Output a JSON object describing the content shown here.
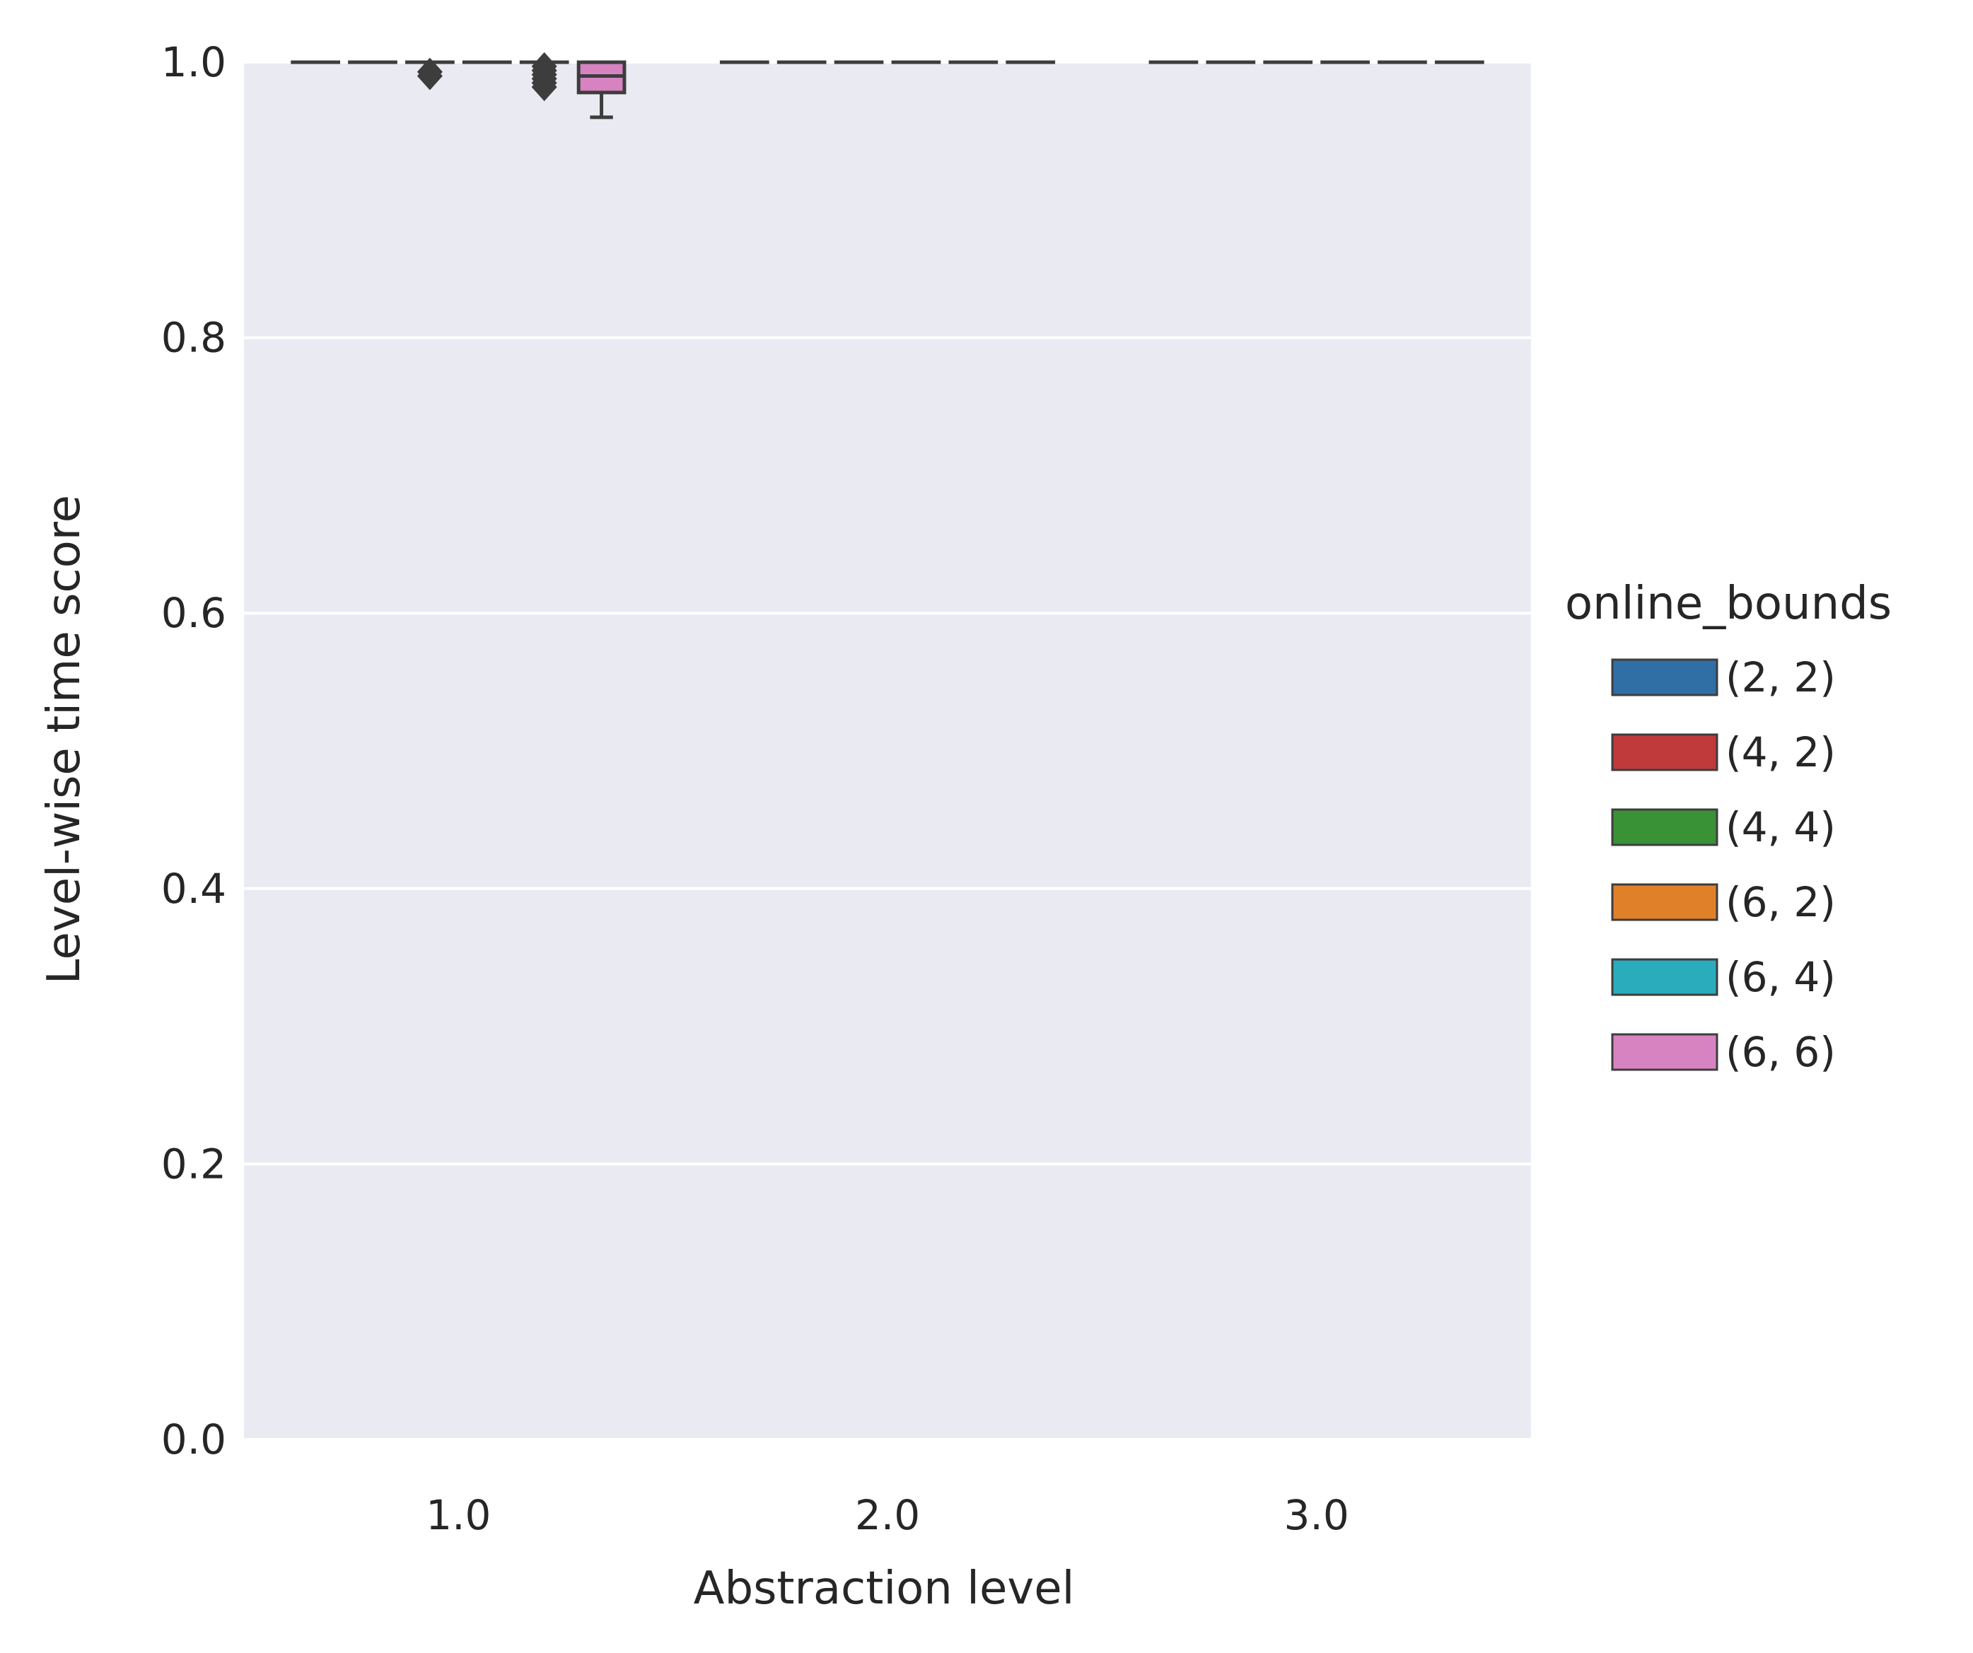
{
  "chart_data": {
    "type": "box",
    "title": "",
    "xlabel": "Abstraction level",
    "ylabel": "Level-wise time score",
    "categories": [
      "1.0",
      "2.0",
      "3.0"
    ],
    "ylim": [
      0.0,
      1.0
    ],
    "yticks": [
      "0.0",
      "0.2",
      "0.4",
      "0.6",
      "0.8",
      "1.0"
    ],
    "grid": true,
    "legend": {
      "title": "online_bounds",
      "position": "right",
      "entries": [
        {
          "label": "(2, 2)",
          "color": "#2f6fa5"
        },
        {
          "label": "(4, 2)",
          "color": "#c0393b"
        },
        {
          "label": "(4, 4)",
          "color": "#3a9237"
        },
        {
          "label": "(6, 2)",
          "color": "#e0812a"
        },
        {
          "label": "(6, 4)",
          "color": "#2aacbd"
        },
        {
          "label": "(6, 6)",
          "color": "#d783c2"
        }
      ]
    },
    "series": [
      {
        "name": "(2, 2)",
        "boxes": [
          {
            "category": "1.0",
            "q1": 1.0,
            "median": 1.0,
            "q3": 1.0,
            "whisker_low": 1.0,
            "whisker_high": 1.0,
            "outliers": []
          },
          {
            "category": "2.0",
            "q1": 1.0,
            "median": 1.0,
            "q3": 1.0,
            "whisker_low": 1.0,
            "whisker_high": 1.0,
            "outliers": []
          },
          {
            "category": "3.0",
            "q1": 1.0,
            "median": 1.0,
            "q3": 1.0,
            "whisker_low": 1.0,
            "whisker_high": 1.0,
            "outliers": []
          }
        ]
      },
      {
        "name": "(4, 2)",
        "boxes": [
          {
            "category": "1.0",
            "q1": 1.0,
            "median": 1.0,
            "q3": 1.0,
            "whisker_low": 1.0,
            "whisker_high": 1.0,
            "outliers": []
          },
          {
            "category": "2.0",
            "q1": 1.0,
            "median": 1.0,
            "q3": 1.0,
            "whisker_low": 1.0,
            "whisker_high": 1.0,
            "outliers": []
          },
          {
            "category": "3.0",
            "q1": 1.0,
            "median": 1.0,
            "q3": 1.0,
            "whisker_low": 1.0,
            "whisker_high": 1.0,
            "outliers": []
          }
        ]
      },
      {
        "name": "(4, 4)",
        "boxes": [
          {
            "category": "1.0",
            "q1": 1.0,
            "median": 1.0,
            "q3": 1.0,
            "whisker_low": 1.0,
            "whisker_high": 1.0,
            "outliers": [
              0.99,
              0.993
            ]
          },
          {
            "category": "2.0",
            "q1": 1.0,
            "median": 1.0,
            "q3": 1.0,
            "whisker_low": 1.0,
            "whisker_high": 1.0,
            "outliers": []
          },
          {
            "category": "3.0",
            "q1": 1.0,
            "median": 1.0,
            "q3": 1.0,
            "whisker_low": 1.0,
            "whisker_high": 1.0,
            "outliers": []
          }
        ]
      },
      {
        "name": "(6, 2)",
        "boxes": [
          {
            "category": "1.0",
            "q1": 1.0,
            "median": 1.0,
            "q3": 1.0,
            "whisker_low": 1.0,
            "whisker_high": 1.0,
            "outliers": []
          },
          {
            "category": "2.0",
            "q1": 1.0,
            "median": 1.0,
            "q3": 1.0,
            "whisker_low": 1.0,
            "whisker_high": 1.0,
            "outliers": []
          },
          {
            "category": "3.0",
            "q1": 1.0,
            "median": 1.0,
            "q3": 1.0,
            "whisker_low": 1.0,
            "whisker_high": 1.0,
            "outliers": []
          }
        ]
      },
      {
        "name": "(6, 4)",
        "boxes": [
          {
            "category": "1.0",
            "q1": 1.0,
            "median": 1.0,
            "q3": 1.0,
            "whisker_low": 1.0,
            "whisker_high": 1.0,
            "outliers": [
              0.982,
              0.985,
              0.988,
              0.991,
              0.994,
              0.997
            ]
          },
          {
            "category": "2.0",
            "q1": 1.0,
            "median": 1.0,
            "q3": 1.0,
            "whisker_low": 1.0,
            "whisker_high": 1.0,
            "outliers": []
          },
          {
            "category": "3.0",
            "q1": 1.0,
            "median": 1.0,
            "q3": 1.0,
            "whisker_low": 1.0,
            "whisker_high": 1.0,
            "outliers": []
          }
        ]
      },
      {
        "name": "(6, 6)",
        "boxes": [
          {
            "category": "1.0",
            "q1": 0.978,
            "median": 0.99,
            "q3": 1.0,
            "whisker_low": 0.96,
            "whisker_high": 1.0,
            "outliers": []
          },
          {
            "category": "2.0",
            "q1": 1.0,
            "median": 1.0,
            "q3": 1.0,
            "whisker_low": 1.0,
            "whisker_high": 1.0,
            "outliers": []
          },
          {
            "category": "3.0",
            "q1": 1.0,
            "median": 1.0,
            "q3": 1.0,
            "whisker_low": 1.0,
            "whisker_high": 1.0,
            "outliers": []
          }
        ]
      }
    ]
  }
}
